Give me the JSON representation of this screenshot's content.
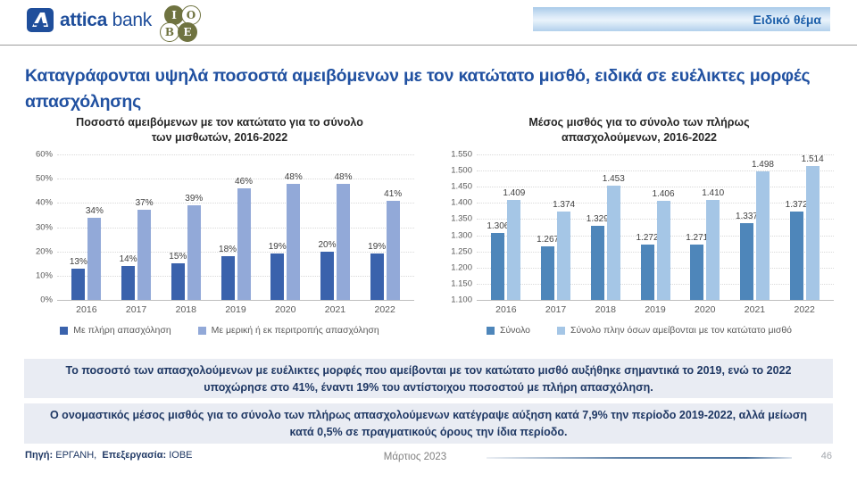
{
  "header": {
    "attica_logo": {
      "text_bold": "attica",
      "text_regular": "bank"
    },
    "iobe_logo": {
      "letters": [
        "I",
        "O",
        "B",
        "E"
      ]
    },
    "special_topic_label": "Ειδικό θέμα"
  },
  "title": "Καταγράφονται υψηλά ποσοστά αμειβόμενων με τον κατώτατο μισθό, ειδικά σε ευέλικτες μορφές απασχόλησης",
  "chart_data": [
    {
      "type": "bar",
      "title": "Ποσοστό αμειβόμενων με τον κατώτατο για το σύνολο των μισθωτών, 2016-2022",
      "categories": [
        "2016",
        "2017",
        "2018",
        "2019",
        "2020",
        "2021",
        "2022"
      ],
      "series": [
        {
          "name": "Με πλήρη απασχόληση",
          "color": "#3a62ac",
          "values": [
            13,
            14,
            15,
            18,
            19,
            20,
            19
          ],
          "labels": [
            "13%",
            "14%",
            "15%",
            "18%",
            "19%",
            "20%",
            "19%"
          ]
        },
        {
          "name": "Με μερική ή εκ περιτροπής απασχόληση",
          "color": "#92a9d8",
          "values": [
            34,
            37,
            39,
            46,
            48,
            48,
            41
          ],
          "labels": [
            "34%",
            "37%",
            "39%",
            "46%",
            "48%",
            "48%",
            "41%"
          ]
        }
      ],
      "ylim": [
        0,
        60
      ],
      "y_tick_labels": [
        "60%",
        "50%",
        "40%",
        "30%",
        "20%",
        "10%",
        "0%"
      ],
      "grid": true,
      "legend_position": "bottom"
    },
    {
      "type": "bar",
      "title": "Μέσος μισθός για το σύνολο των πλήρως απασχολούμενων, 2016-2022",
      "categories": [
        "2016",
        "2017",
        "2018",
        "2019",
        "2020",
        "2021",
        "2022"
      ],
      "series": [
        {
          "name": "Σύνολο",
          "color": "#4e86ba",
          "values": [
            1306,
            1267,
            1329,
            1272,
            1271,
            1337,
            1372
          ],
          "labels": [
            "1.306",
            "1.267",
            "1.329",
            "1.272",
            "1.271",
            "1.337",
            "1.372"
          ]
        },
        {
          "name": "Σύνολο πλην όσων αμείβονται με τον κατώτατο μισθό",
          "color": "#a5c6e6",
          "values": [
            1409,
            1374,
            1453,
            1406,
            1410,
            1498,
            1514
          ],
          "labels": [
            "1.409",
            "1.374",
            "1.453",
            "1.406",
            "1.410",
            "1.498",
            "1.514"
          ]
        }
      ],
      "ylim": [
        1100,
        1550
      ],
      "y_tick_labels": [
        "1.550",
        "1.500",
        "1.450",
        "1.400",
        "1.350",
        "1.300",
        "1.250",
        "1.200",
        "1.150",
        "1.100"
      ],
      "grid": true,
      "legend_position": "bottom"
    }
  ],
  "highlights": [
    {
      "text": "Το ποσοστό των απασχολούμενων με ευέλικτες μορφές που αμείβονται με τον κατώτατο μισθό αυξήθηκε σημαντικά το 2019, ενώ το 2022 υποχώρησε στο 41%, έναντι 19% του αντίστοιχου ποσοστού με πλήρη απασχόληση."
    },
    {
      "text": "Ο ονομαστικός μέσος μισθός για το σύνολο των πλήρως απασχολούμενων κατέγραψε αύξηση κατά 7,9% την περίοδο 2019-2022, αλλά μείωση κατά 0,5% σε πραγματικούς όρους την ίδια περίοδο."
    }
  ],
  "footer": {
    "source_label": "Πηγή:",
    "source_value": "ΕΡΓΑΝΗ,",
    "processing_label": "Επεξεργασία:",
    "processing_value": "ΙΟΒΕ",
    "date": "Μάρτιος 2023",
    "page_number": "46"
  }
}
